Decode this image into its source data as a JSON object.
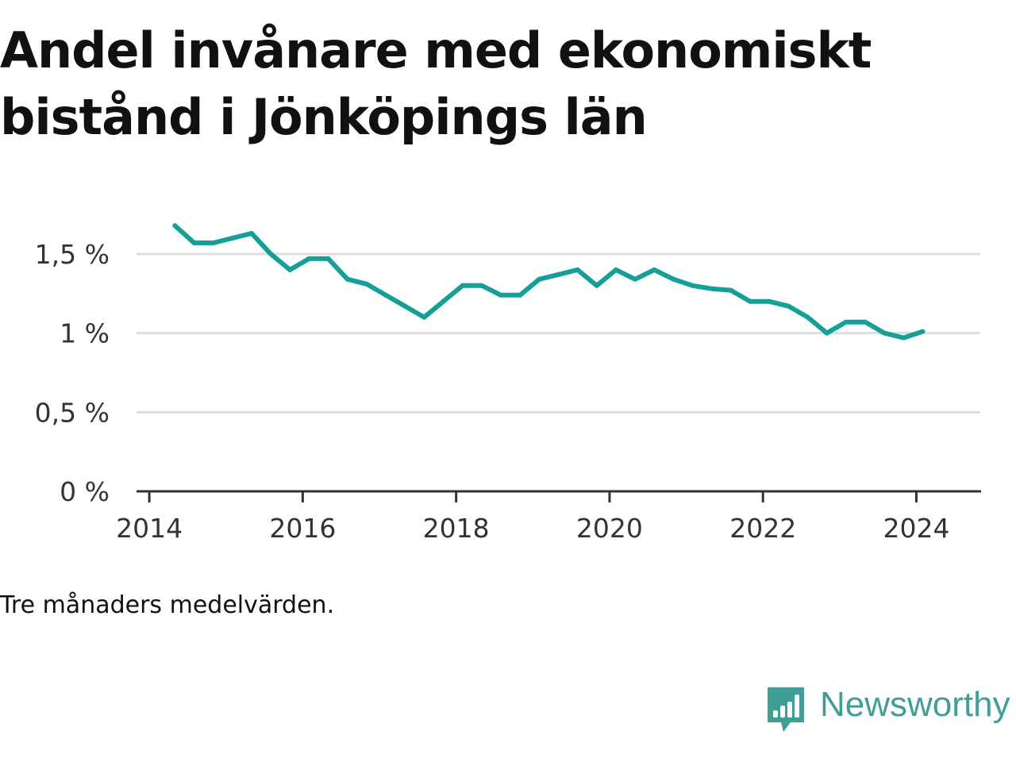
{
  "title": "Andel invånare med ekonomiskt bistånd i Jönköpings län",
  "note": "Tre månaders medelvärden.",
  "brand": {
    "name": "Newsworthy",
    "icon": "newsworthy-bar-chart-icon",
    "color": "#3f9e96"
  },
  "chart_data": {
    "type": "line",
    "title": "Andel invånare med ekonomiskt bistånd i Jönköpings län",
    "xlabel": "",
    "ylabel": "",
    "x_ticks": [
      "2014",
      "2016",
      "2018",
      "2020",
      "2022",
      "2024"
    ],
    "y_ticks": [
      "0 %",
      "0,5 %",
      "1 %",
      "1,5 %"
    ],
    "xlim": [
      "2013-11",
      "2024-11"
    ],
    "ylim": [
      0,
      1.6
    ],
    "grid": "horizontal",
    "line_color": "#14a099",
    "series": [
      {
        "x": [
          "2014-05",
          "2014-08",
          "2014-11",
          "2015-02",
          "2015-05",
          "2015-08",
          "2015-11",
          "2016-02",
          "2016-05",
          "2016-08",
          "2016-11",
          "2017-02",
          "2017-05",
          "2017-08",
          "2017-11",
          "2018-02",
          "2018-05",
          "2018-08",
          "2018-11",
          "2019-02",
          "2019-05",
          "2019-08",
          "2019-11",
          "2020-02",
          "2020-05",
          "2020-08",
          "2020-11",
          "2021-02",
          "2021-05",
          "2021-08",
          "2021-11",
          "2022-02",
          "2022-05",
          "2022-08",
          "2022-11",
          "2023-02",
          "2023-05",
          "2023-08",
          "2023-11",
          "2024-02"
        ],
        "values": [
          1.68,
          1.57,
          1.57,
          1.6,
          1.63,
          1.5,
          1.4,
          1.47,
          1.47,
          1.34,
          1.31,
          1.24,
          1.17,
          1.1,
          1.2,
          1.3,
          1.3,
          1.24,
          1.24,
          1.34,
          1.37,
          1.4,
          1.3,
          1.4,
          1.34,
          1.4,
          1.34,
          1.3,
          1.28,
          1.27,
          1.2,
          1.2,
          1.17,
          1.1,
          1.0,
          1.07,
          1.07,
          1.0,
          0.97,
          1.01
        ]
      }
    ]
  }
}
